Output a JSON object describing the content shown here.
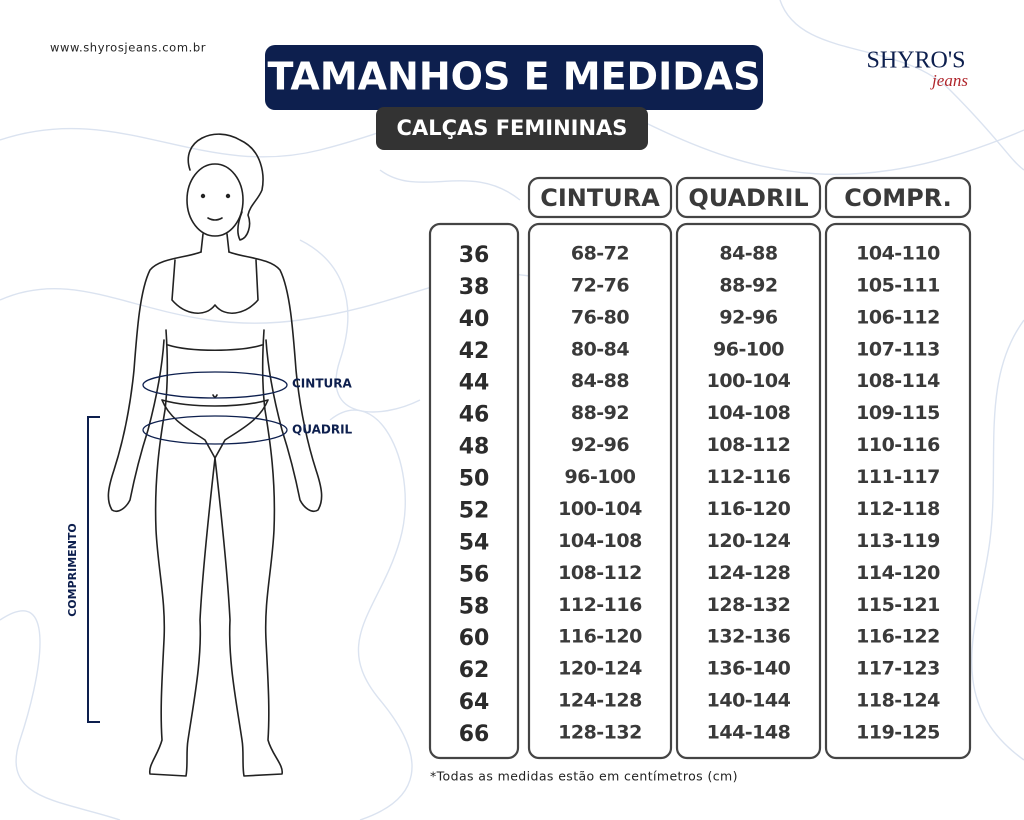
{
  "header": {
    "website": "www.shyrosjeans.com.br",
    "title": "TAMANHOS E MEDIDAS",
    "subtitle": "CALÇAS FEMININAS",
    "logo": "SHYRO'S",
    "logo_sub": "jeans"
  },
  "figure": {
    "waist_label": "CINTURA",
    "hip_label": "QUADRIL",
    "length_label": "COMPRIMENTO"
  },
  "table": {
    "columns": [
      "CINTURA",
      "QUADRIL",
      "COMPR."
    ],
    "rows": [
      [
        36,
        "68-72",
        "84-88",
        "104-110"
      ],
      [
        38,
        "72-76",
        "88-92",
        "105-111"
      ],
      [
        40,
        "76-80",
        "92-96",
        "106-112"
      ],
      [
        42,
        "80-84",
        "96-100",
        "107-113"
      ],
      [
        44,
        "84-88",
        "100-104",
        "108-114"
      ],
      [
        46,
        "88-92",
        "104-108",
        "109-115"
      ],
      [
        48,
        "92-96",
        "108-112",
        "110-116"
      ],
      [
        50,
        "96-100",
        "112-116",
        "111-117"
      ],
      [
        52,
        "100-104",
        "116-120",
        "112-118"
      ],
      [
        54,
        "104-108",
        "120-124",
        "113-119"
      ],
      [
        56,
        "108-112",
        "124-128",
        "114-120"
      ],
      [
        58,
        "112-116",
        "128-132",
        "115-121"
      ],
      [
        60,
        "116-120",
        "132-136",
        "116-122"
      ],
      [
        62,
        "120-124",
        "136-140",
        "117-123"
      ],
      [
        64,
        "124-128",
        "140-144",
        "118-124"
      ],
      [
        66,
        "128-132",
        "144-148",
        "119-125"
      ]
    ]
  },
  "footnote": "*Todas as medidas estão em centímetros (cm)"
}
